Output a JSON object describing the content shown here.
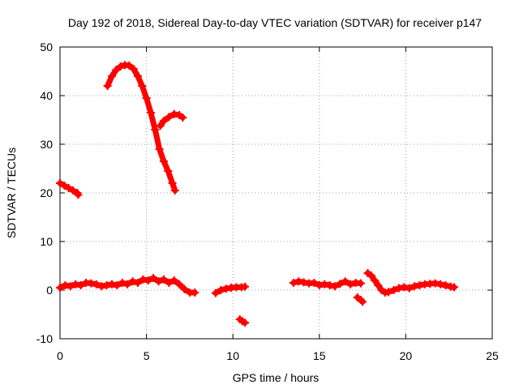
{
  "chart_data": {
    "type": "scatter",
    "title": "Day 192 of 2018, Sidereal Day-to-day VTEC variation (SDTVAR) for receiver p147",
    "xlabel": "GPS time / hours",
    "ylabel": "SDTVAR / TECUs",
    "xlim": [
      0,
      25
    ],
    "ylim": [
      -10,
      50
    ],
    "xticks": [
      0,
      5,
      10,
      15,
      20,
      25
    ],
    "yticks": [
      -10,
      0,
      10,
      20,
      30,
      40,
      50
    ],
    "grid": true,
    "marker": "plus",
    "series": [
      {
        "name": "SDTVAR",
        "color": "#ff0000",
        "segments": [
          {
            "x": [
              0.0,
              0.25,
              0.5,
              0.75,
              1.0,
              1.05
            ],
            "y": [
              22.0,
              21.5,
              21.0,
              20.5,
              20.0,
              19.6
            ]
          },
          {
            "x": [
              0.0,
              0.3,
              0.6,
              0.9,
              1.2,
              1.5,
              1.8,
              2.1,
              2.4,
              2.7,
              3.0,
              3.3,
              3.6,
              3.9,
              4.2,
              4.5,
              4.8,
              5.1,
              5.4,
              5.7,
              6.0,
              6.3,
              6.6,
              6.9,
              7.2,
              7.5,
              7.8
            ],
            "y": [
              0.5,
              1.0,
              0.8,
              1.2,
              1.0,
              1.5,
              1.4,
              1.2,
              0.8,
              1.0,
              1.2,
              1.0,
              1.5,
              1.2,
              1.8,
              1.5,
              2.2,
              2.0,
              2.5,
              1.8,
              2.2,
              1.5,
              2.0,
              1.2,
              0.2,
              -0.5,
              -0.5
            ]
          },
          {
            "x": [
              2.75,
              3.0,
              3.25,
              3.5,
              3.75,
              4.0,
              4.25,
              4.5,
              4.75,
              5.0,
              5.25,
              5.5,
              5.75,
              6.0,
              6.25,
              6.5,
              6.65
            ],
            "y": [
              42.0,
              44.0,
              45.3,
              46.0,
              46.3,
              46.2,
              45.5,
              44.0,
              42.0,
              39.5,
              36.5,
              33.0,
              29.0,
              26.5,
              24.5,
              22.0,
              20.5
            ]
          },
          {
            "x": [
              5.8,
              6.0,
              6.3,
              6.6,
              6.9,
              7.1
            ],
            "y": [
              33.8,
              34.8,
              35.6,
              36.2,
              36.0,
              35.5
            ]
          },
          {
            "x": [
              9.0,
              9.3,
              9.6,
              9.9,
              10.2,
              10.5,
              10.7
            ],
            "y": [
              -0.6,
              0.0,
              0.3,
              0.5,
              0.6,
              0.6,
              0.7
            ]
          },
          {
            "x": [
              10.4,
              10.55,
              10.7
            ],
            "y": [
              -6.0,
              -6.4,
              -6.7
            ]
          },
          {
            "x": [
              13.5,
              13.8,
              14.1,
              14.4,
              14.7,
              15.0,
              15.3,
              15.6,
              15.9,
              16.2,
              16.5,
              16.8,
              17.1,
              17.4
            ],
            "y": [
              1.5,
              1.8,
              1.6,
              1.4,
              1.5,
              1.0,
              1.2,
              1.0,
              0.8,
              1.3,
              1.8,
              1.2,
              1.5,
              1.4
            ]
          },
          {
            "x": [
              17.2,
              17.4,
              17.5
            ],
            "y": [
              -1.5,
              -2.0,
              -2.4
            ]
          },
          {
            "x": [
              17.8,
              18.0,
              18.2,
              18.4,
              18.6,
              18.8,
              19.0,
              19.3,
              19.6,
              19.9,
              20.2,
              20.5,
              20.8,
              21.1,
              21.4,
              21.7,
              22.0,
              22.3,
              22.6,
              22.8
            ],
            "y": [
              3.5,
              3.0,
              2.0,
              1.0,
              0.0,
              -0.5,
              -0.4,
              0.0,
              0.4,
              0.6,
              0.4,
              0.8,
              1.0,
              1.2,
              1.3,
              1.4,
              1.2,
              1.0,
              0.7,
              0.6
            ]
          }
        ]
      }
    ]
  }
}
